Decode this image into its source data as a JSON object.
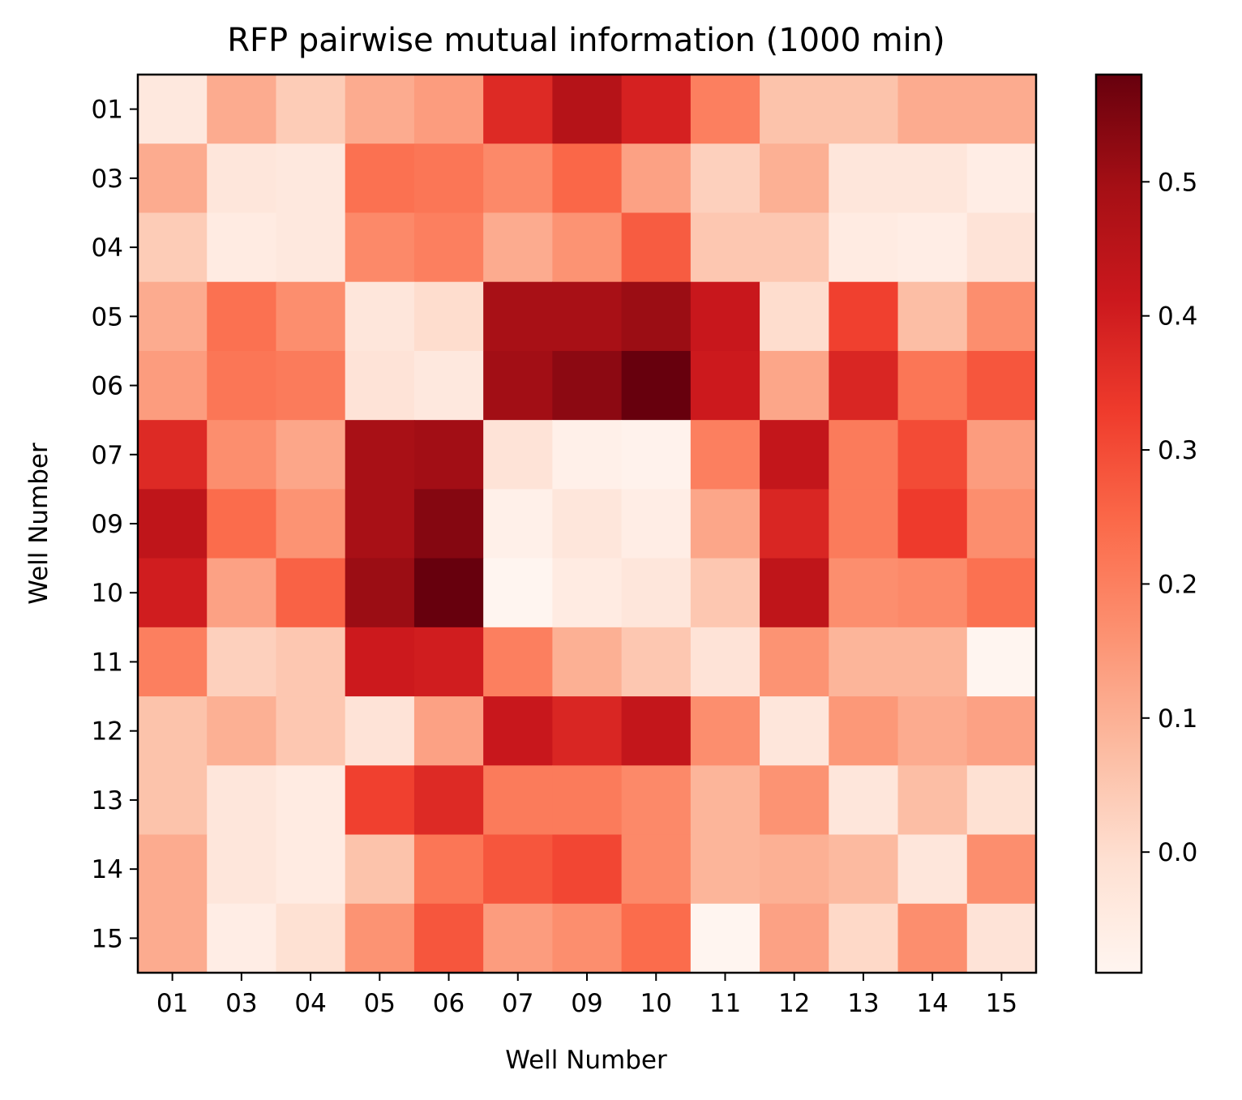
{
  "chart_data": {
    "type": "heatmap",
    "title": "RFP pairwise mutual information (1000 min)",
    "xlabel": "Well Number",
    "ylabel": "Well Number",
    "x_categories": [
      "01",
      "03",
      "04",
      "05",
      "06",
      "07",
      "09",
      "10",
      "11",
      "12",
      "13",
      "14",
      "15"
    ],
    "y_categories": [
      "01",
      "03",
      "04",
      "05",
      "06",
      "07",
      "09",
      "10",
      "11",
      "12",
      "13",
      "14",
      "15"
    ],
    "colormap": "Reds",
    "color_range": [
      -0.09,
      0.58
    ],
    "colorbar": {
      "ticks": [
        0.0,
        0.1,
        0.2,
        0.3,
        0.4,
        0.5
      ],
      "tick_labels": [
        "0.0",
        "0.1",
        "0.2",
        "0.3",
        "0.4",
        "0.5"
      ]
    },
    "grid": false,
    "values": [
      [
        -0.04,
        0.11,
        0.04,
        0.11,
        0.14,
        0.37,
        0.46,
        0.39,
        0.2,
        0.06,
        0.06,
        0.11,
        0.11
      ],
      [
        0.11,
        -0.03,
        -0.04,
        0.23,
        0.22,
        0.18,
        0.25,
        0.13,
        0.03,
        0.1,
        -0.03,
        -0.03,
        -0.06
      ],
      [
        0.04,
        -0.05,
        -0.04,
        0.18,
        0.2,
        0.11,
        0.16,
        0.27,
        0.05,
        0.05,
        -0.05,
        -0.06,
        -0.02
      ],
      [
        0.11,
        0.23,
        0.17,
        -0.03,
        0.0,
        0.49,
        0.49,
        0.51,
        0.42,
        0.0,
        0.32,
        0.07,
        0.17
      ],
      [
        0.14,
        0.22,
        0.21,
        -0.02,
        -0.04,
        0.5,
        0.53,
        0.58,
        0.41,
        0.12,
        0.38,
        0.22,
        0.28
      ],
      [
        0.37,
        0.17,
        0.12,
        0.49,
        0.5,
        -0.02,
        -0.07,
        -0.08,
        0.2,
        0.43,
        0.21,
        0.3,
        0.14
      ],
      [
        0.44,
        0.24,
        0.16,
        0.49,
        0.54,
        -0.07,
        -0.03,
        -0.06,
        0.12,
        0.38,
        0.21,
        0.33,
        0.17
      ],
      [
        0.4,
        0.13,
        0.26,
        0.51,
        0.58,
        -0.09,
        -0.05,
        -0.03,
        0.05,
        0.44,
        0.17,
        0.18,
        0.23
      ],
      [
        0.2,
        0.03,
        0.05,
        0.41,
        0.4,
        0.2,
        0.1,
        0.05,
        -0.02,
        0.16,
        0.09,
        0.09,
        -0.09
      ],
      [
        0.06,
        0.1,
        0.05,
        -0.02,
        0.13,
        0.42,
        0.38,
        0.43,
        0.17,
        -0.03,
        0.15,
        0.11,
        0.13
      ],
      [
        0.06,
        -0.03,
        -0.05,
        0.32,
        0.37,
        0.21,
        0.21,
        0.18,
        0.09,
        0.16,
        -0.03,
        0.07,
        -0.01
      ],
      [
        0.11,
        -0.03,
        -0.05,
        0.06,
        0.22,
        0.28,
        0.31,
        0.18,
        0.09,
        0.1,
        0.08,
        -0.03,
        0.17
      ],
      [
        0.11,
        -0.06,
        -0.01,
        0.16,
        0.28,
        0.14,
        0.17,
        0.24,
        -0.09,
        0.13,
        0.01,
        0.17,
        -0.02
      ]
    ]
  }
}
